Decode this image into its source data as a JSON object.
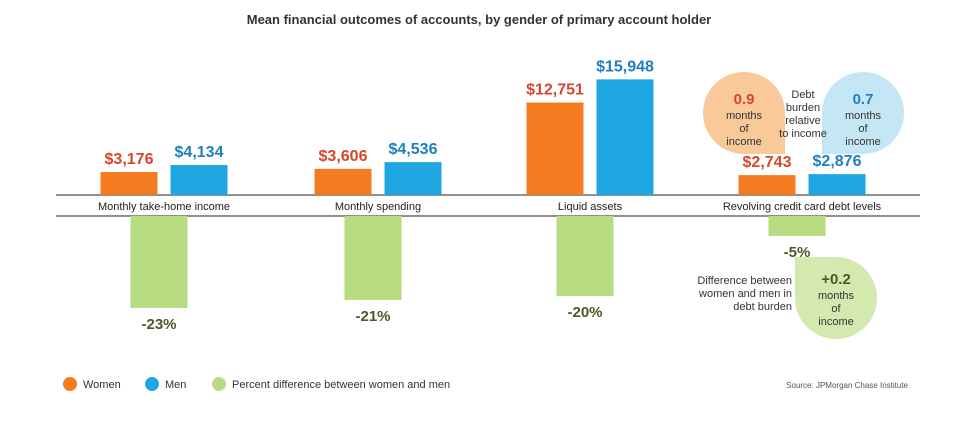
{
  "chart_data": {
    "type": "bar",
    "title": "Mean financial outcomes of accounts, by gender of primary account holder",
    "categories": [
      "Monthly take-home income",
      "Monthly spending",
      "Liquid assets",
      "Revolving credit card debt levels"
    ],
    "series": [
      {
        "name": "Women",
        "values": [
          3176,
          3606,
          12751,
          2743
        ],
        "labels": [
          "$3,176",
          "$3,606",
          "$12,751",
          "$2,743"
        ],
        "color": "#f47b20",
        "label_color": "#d8452c"
      },
      {
        "name": "Men",
        "values": [
          4134,
          4536,
          15948,
          2876
        ],
        "labels": [
          "$4,134",
          "$4,536",
          "$15,948",
          "$2,876"
        ],
        "color": "#1ea7e1",
        "label_color": "#1e7fc0"
      }
    ],
    "difference": {
      "name": "Percent difference between women and men",
      "values": [
        -23,
        -21,
        -20,
        -5
      ],
      "labels": [
        "-23%",
        "-21%",
        "-20%",
        "-5%"
      ],
      "color": "#b7dc82"
    },
    "debt_burden": {
      "women_value": "0.9",
      "women_unit": "months of income",
      "women_color": "#f9c99a",
      "men_value": "0.7",
      "men_unit": "months of income",
      "men_color": "#c5e6f5",
      "label": "Debt burden relative to income",
      "difference_label": "Difference between women and men in debt burden",
      "difference_value": "+0.2",
      "difference_unit": "months of income",
      "difference_color": "#d3e9b0"
    },
    "legend": [
      "Women",
      "Men",
      "Percent difference between women and men"
    ],
    "legend_position": "bottom-left",
    "source": "Source:  JPMorgan Chase Institute"
  }
}
